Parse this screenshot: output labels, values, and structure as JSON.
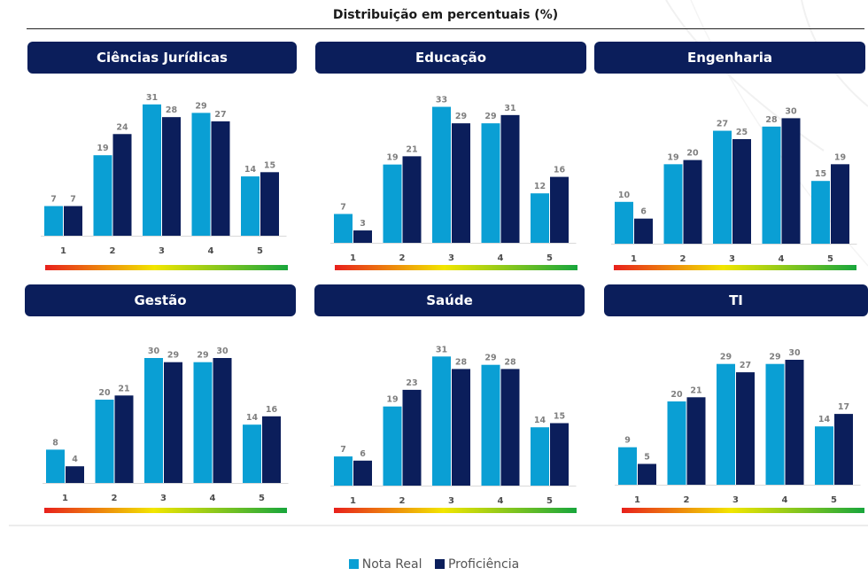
{
  "title": "Distribuição em percentuais (%)",
  "colors": {
    "header": "#0b1e5b",
    "nota_real": "#0a9fd4",
    "proficiencia": "#0b1e5b",
    "value_label": "#7f7f7f",
    "axis_label": "#4d4d4d"
  },
  "legend": [
    {
      "name": "Nota Real",
      "color": "#0a9fd4"
    },
    {
      "name": "Proficiência",
      "color": "#0b1e5b"
    }
  ],
  "chart_data": [
    {
      "type": "bar",
      "title": "Ciências Jurídicas",
      "categories": [
        "1",
        "2",
        "3",
        "4",
        "5"
      ],
      "series": [
        {
          "name": "Nota Real",
          "values": [
            7,
            19,
            31,
            29,
            14
          ]
        },
        {
          "name": "Proficiência",
          "values": [
            7,
            24,
            28,
            27,
            15
          ]
        }
      ],
      "ylim": [
        0,
        35
      ],
      "color_scale": "red-yellow-green"
    },
    {
      "type": "bar",
      "title": "Educação",
      "categories": [
        "1",
        "2",
        "3",
        "4",
        "5"
      ],
      "series": [
        {
          "name": "Nota Real",
          "values": [
            7,
            19,
            33,
            29,
            12
          ]
        },
        {
          "name": "Proficiência",
          "values": [
            3,
            21,
            29,
            31,
            16
          ]
        }
      ],
      "ylim": [
        0,
        35
      ],
      "color_scale": "red-yellow-green"
    },
    {
      "type": "bar",
      "title": "Engenharia",
      "categories": [
        "1",
        "2",
        "3",
        "4",
        "5"
      ],
      "series": [
        {
          "name": "Nota Real",
          "values": [
            10,
            19,
            27,
            28,
            15
          ]
        },
        {
          "name": "Proficiência",
          "values": [
            6,
            20,
            25,
            30,
            19
          ]
        }
      ],
      "ylim": [
        0,
        35
      ],
      "color_scale": "red-yellow-green"
    },
    {
      "type": "bar",
      "title": "Gestão",
      "categories": [
        "1",
        "2",
        "3",
        "4",
        "5"
      ],
      "series": [
        {
          "name": "Nota Real",
          "values": [
            8,
            20,
            30,
            29,
            14
          ]
        },
        {
          "name": "Proficiência",
          "values": [
            4,
            21,
            29,
            30,
            16
          ]
        }
      ],
      "ylim": [
        0,
        35
      ],
      "color_scale": "red-yellow-green"
    },
    {
      "type": "bar",
      "title": "Saúde",
      "categories": [
        "1",
        "2",
        "3",
        "4",
        "5"
      ],
      "series": [
        {
          "name": "Nota Real",
          "values": [
            7,
            19,
            31,
            29,
            14
          ]
        },
        {
          "name": "Proficiência",
          "values": [
            6,
            23,
            28,
            28,
            15
          ]
        }
      ],
      "ylim": [
        0,
        35
      ],
      "color_scale": "red-yellow-green"
    },
    {
      "type": "bar",
      "title": "TI",
      "categories": [
        "1",
        "2",
        "3",
        "4",
        "5"
      ],
      "series": [
        {
          "name": "Nota Real",
          "values": [
            9,
            20,
            29,
            29,
            14
          ]
        },
        {
          "name": "Proficiência",
          "values": [
            5,
            21,
            27,
            30,
            17
          ]
        }
      ],
      "ylim": [
        0,
        35
      ],
      "color_scale": "red-yellow-green"
    }
  ]
}
